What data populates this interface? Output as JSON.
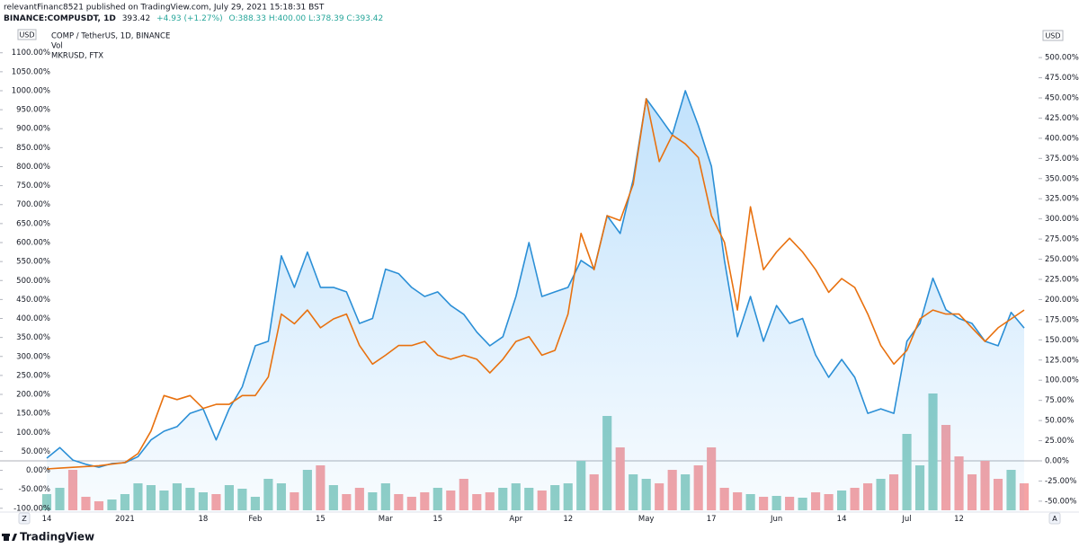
{
  "header": {
    "author_line": "relevantFinanc8521 published on TradingView.com, July 29, 2021 15:18:31 BST",
    "symbol": "BINANCE:COMPUSDT, 1D",
    "last": "393.42",
    "change": "+4.93 (+1.27%)",
    "ohlc": "O:388.33 H:400.00 L:378.39 C:393.42"
  },
  "footer": {
    "brand": "TradingView",
    "left_button": "Z",
    "right_button": "A"
  },
  "chart_data": {
    "type": "line",
    "y_unit": "USD",
    "categories": [
      "14",
      null,
      null,
      null,
      null,
      null,
      "2021",
      null,
      null,
      null,
      null,
      null,
      "18",
      null,
      null,
      null,
      "Feb",
      null,
      null,
      null,
      null,
      "15",
      null,
      null,
      null,
      null,
      "Mar",
      null,
      null,
      null,
      "15",
      null,
      null,
      null,
      null,
      null,
      "Apr",
      null,
      null,
      null,
      "12",
      null,
      null,
      null,
      null,
      null,
      "May",
      null,
      null,
      null,
      null,
      "17",
      null,
      null,
      null,
      null,
      "Jun",
      null,
      null,
      null,
      null,
      "14",
      null,
      null,
      null,
      null,
      "Jul",
      null,
      null,
      null,
      "12",
      null,
      null,
      null,
      null,
      null
    ],
    "series": [
      {
        "name": "COMP / TetherUS, 1D, BINANCE",
        "color": "#2b8fd6",
        "axis": "y",
        "area": true,
        "values": [
          32,
          60,
          27,
          16,
          8,
          18,
          20,
          36,
          80,
          103,
          115,
          150,
          162,
          80,
          162,
          220,
          328,
          340,
          565,
          482,
          575,
          482,
          482,
          470,
          387,
          400,
          530,
          518,
          482,
          458,
          470,
          434,
          411,
          364,
          328,
          352,
          458,
          600,
          458,
          470,
          482,
          553,
          530,
          671,
          624,
          766,
          979,
          932,
          884,
          1000,
          908,
          801,
          553,
          352,
          458,
          340,
          434,
          387,
          400,
          304,
          245,
          292,
          245,
          150,
          162,
          150,
          340,
          387,
          506,
          423,
          400,
          387,
          340,
          328,
          416,
          375
        ]
      },
      {
        "name": "Vol",
        "axis": "volume",
        "up_color": "#91cfc5",
        "down_color": "#f5a3a5",
        "values": [
          18,
          25,
          45,
          15,
          10,
          12,
          18,
          30,
          28,
          22,
          30,
          25,
          20,
          18,
          28,
          24,
          15,
          35,
          30,
          20,
          45,
          50,
          28,
          18,
          25,
          20,
          30,
          18,
          15,
          20,
          25,
          22,
          35,
          18,
          20,
          25,
          30,
          25,
          22,
          28,
          30,
          55,
          40,
          105,
          70,
          40,
          35,
          30,
          45,
          40,
          50,
          70,
          25,
          20,
          18,
          15,
          16,
          15,
          14,
          20,
          18,
          22,
          25,
          30,
          35,
          40,
          85,
          50,
          130,
          95,
          60,
          40,
          55,
          35,
          45,
          30
        ]
      },
      {
        "name": "MKRUSD, FTX",
        "color": "#e8710f",
        "axis": "y2",
        "values": [
          -10,
          -9,
          -8,
          -7,
          -6,
          -4,
          -2,
          9,
          37,
          81,
          76,
          81,
          65,
          70,
          70,
          81,
          81,
          104,
          182,
          170,
          187,
          165,
          176,
          182,
          143,
          120,
          131,
          143,
          143,
          148,
          131,
          126,
          131,
          126,
          109,
          126,
          148,
          154,
          131,
          137,
          182,
          282,
          237,
          304,
          298,
          343,
          449,
          371,
          404,
          393,
          376,
          304,
          271,
          187,
          315,
          237,
          259,
          276,
          259,
          237,
          209,
          226,
          215,
          182,
          143,
          120,
          137,
          176,
          187,
          182,
          182,
          165,
          148,
          165,
          176,
          187
        ]
      }
    ],
    "ylim": [
      -110,
      1168
    ],
    "yticks": [
      {
        "value": -100,
        "label": "-100.00%"
      },
      {
        "value": -50,
        "label": "-50.00%"
      },
      {
        "value": 0,
        "label": "0.00%"
      },
      {
        "value": 50,
        "label": "50.00%"
      },
      {
        "value": 100,
        "label": "100.00%"
      },
      {
        "value": 150,
        "label": "150.00%"
      },
      {
        "value": 200,
        "label": "200.00%"
      },
      {
        "value": 250,
        "label": "250.00%"
      },
      {
        "value": 300,
        "label": "300.00%"
      },
      {
        "value": 350,
        "label": "350.00%"
      },
      {
        "value": 400,
        "label": "400.00%"
      },
      {
        "value": 450,
        "label": "450.00%"
      },
      {
        "value": 500,
        "label": "500.00%"
      },
      {
        "value": 550,
        "label": "550.00%"
      },
      {
        "value": 600,
        "label": "600.00%"
      },
      {
        "value": 650,
        "label": "650.00%"
      },
      {
        "value": 700,
        "label": "700.00%"
      },
      {
        "value": 750,
        "label": "750.00%"
      },
      {
        "value": 800,
        "label": "800.00%"
      },
      {
        "value": 850,
        "label": "850.00%"
      },
      {
        "value": 900,
        "label": "900.00%"
      },
      {
        "value": 950,
        "label": "950.00%"
      },
      {
        "value": 1000,
        "label": "1000.00%"
      },
      {
        "value": 1050,
        "label": "1050.00%"
      },
      {
        "value": 1100,
        "label": "1100.00%"
      }
    ],
    "y2lim": [
      -63.5,
      538
    ],
    "y2ticks": [
      {
        "value": -50,
        "label": "-50.00%"
      },
      {
        "value": -25,
        "label": "-25.00%"
      },
      {
        "value": 0,
        "label": "0.00%"
      },
      {
        "value": 25,
        "label": "25.00%"
      },
      {
        "value": 50,
        "label": "50.00%"
      },
      {
        "value": 75,
        "label": "75.00%"
      },
      {
        "value": 100,
        "label": "100.00%"
      },
      {
        "value": 125,
        "label": "125.00%"
      },
      {
        "value": 150,
        "label": "150.00%"
      },
      {
        "value": 175,
        "label": "175.00%"
      },
      {
        "value": 200,
        "label": "200.00%"
      },
      {
        "value": 225,
        "label": "225.00%"
      },
      {
        "value": 250,
        "label": "250.00%"
      },
      {
        "value": 275,
        "label": "275.00%"
      },
      {
        "value": 300,
        "label": "300.00%"
      },
      {
        "value": 325,
        "label": "325.00%"
      },
      {
        "value": 350,
        "label": "350.00%"
      },
      {
        "value": 375,
        "label": "375.00%"
      },
      {
        "value": 400,
        "label": "400.00%"
      },
      {
        "value": 425,
        "label": "425.00%"
      },
      {
        "value": 450,
        "label": "450.00%"
      },
      {
        "value": 475,
        "label": "475.00%"
      },
      {
        "value": 500,
        "label": "500.00%"
      }
    ],
    "baseline": {
      "axis": "y2",
      "value": 0
    }
  }
}
